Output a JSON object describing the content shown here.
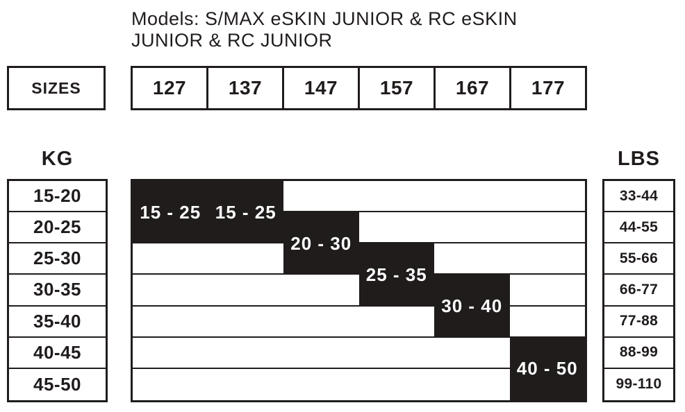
{
  "title": {
    "line1": "Models: S/MAX eSKIN JUNIOR & RC eSKIN",
    "line2": "JUNIOR & RC JUNIOR"
  },
  "sizes": {
    "label": "SIZES",
    "values": [
      "127",
      "137",
      "147",
      "157",
      "167",
      "177"
    ]
  },
  "kg": {
    "label": "KG",
    "rows": [
      "15-20",
      "20-25",
      "25-30",
      "30-35",
      "35-40",
      "40-45",
      "45-50"
    ]
  },
  "lbs": {
    "label": "LBS",
    "rows": [
      "33-44",
      "44-55",
      "55-66",
      "66-77",
      "77-88",
      "88-99",
      "99-110"
    ]
  },
  "chart_data": {
    "type": "heatmap",
    "title": "Recommended skier weight range per ski size",
    "columns": [
      "127",
      "137",
      "147",
      "157",
      "167",
      "177"
    ],
    "row_labels_kg": [
      "15-20",
      "20-25",
      "25-30",
      "30-35",
      "35-40",
      "40-45",
      "45-50"
    ],
    "row_labels_lbs": [
      "33-44",
      "44-55",
      "55-66",
      "66-77",
      "77-88",
      "88-99",
      "99-110"
    ],
    "blocks": [
      {
        "size": "127",
        "label": "15 - 25",
        "kg_min": 15,
        "kg_max": 25,
        "col_start": 0,
        "col_span": 1,
        "row_start": 0,
        "row_span": 2
      },
      {
        "size": "137",
        "label": "15 - 25",
        "kg_min": 15,
        "kg_max": 25,
        "col_start": 1,
        "col_span": 1,
        "row_start": 0,
        "row_span": 2
      },
      {
        "size": "147",
        "label": "20 - 30",
        "kg_min": 20,
        "kg_max": 30,
        "col_start": 2,
        "col_span": 1,
        "row_start": 1,
        "row_span": 2
      },
      {
        "size": "157",
        "label": "25 - 35",
        "kg_min": 25,
        "kg_max": 35,
        "col_start": 3,
        "col_span": 1,
        "row_start": 2,
        "row_span": 2
      },
      {
        "size": "167",
        "label": "30 - 40",
        "kg_min": 30,
        "kg_max": 40,
        "col_start": 4,
        "col_span": 1,
        "row_start": 3,
        "row_span": 2
      },
      {
        "size": "177",
        "label": "40 - 50",
        "kg_min": 40,
        "kg_max": 50,
        "col_start": 5,
        "col_span": 1,
        "row_start": 5,
        "row_span": 2
      }
    ]
  },
  "colors": {
    "ink": "#201c1c",
    "background": "#ffffff",
    "block_text": "#ffffff"
  }
}
